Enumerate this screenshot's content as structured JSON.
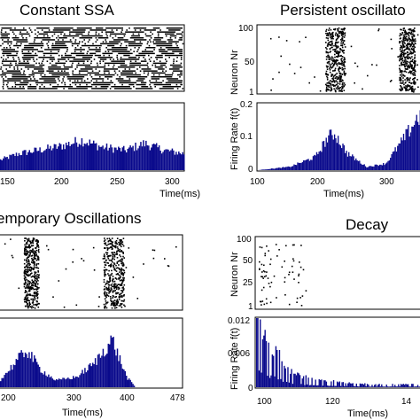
{
  "colors": {
    "histogram": "#0a0a8c",
    "raster": "#000000",
    "axes": "#000000",
    "background": "#ffffff"
  },
  "chart_data": [
    {
      "id": "constant",
      "type": "raster+histogram",
      "title": "Constant SSA",
      "raster": {
        "density": "uniform-dense",
        "ylabel": "",
        "yticks": []
      },
      "histogram": {
        "xlabel": "Time(ms)",
        "ylabel": "",
        "xlim": [
          110,
          300
        ],
        "ylim": [
          0,
          0.2
        ],
        "xticks": [
          "150",
          "200",
          "250",
          "300"
        ],
        "yticks": [],
        "bins": [
          {
            "x": 110,
            "y": 0.03
          },
          {
            "x": 130,
            "y": 0.05
          },
          {
            "x": 150,
            "y": 0.06
          },
          {
            "x": 170,
            "y": 0.07
          },
          {
            "x": 195,
            "y": 0.09
          },
          {
            "x": 215,
            "y": 0.07
          },
          {
            "x": 240,
            "y": 0.06
          },
          {
            "x": 260,
            "y": 0.08
          },
          {
            "x": 280,
            "y": 0.06
          },
          {
            "x": 300,
            "y": 0.05
          }
        ]
      }
    },
    {
      "id": "persistent",
      "type": "raster+histogram",
      "title": "Persistent oscillato",
      "raster": {
        "density": "bursts",
        "bursts": [
          [
            205,
            235
          ],
          [
            320,
            345
          ]
        ],
        "ylabel": "Neuron Nr",
        "yticks": [
          "100",
          "50",
          "1"
        ]
      },
      "histogram": {
        "xlabel": "Time(ms)",
        "ylabel": "Firing Rate f(t)",
        "xlim": [
          100,
          360
        ],
        "ylim": [
          0,
          0.2
        ],
        "xticks": [
          "100",
          "200",
          "300"
        ],
        "yticks": [
          "0.2",
          "0.1",
          "0"
        ],
        "bins": [
          {
            "x": 100,
            "y": 0.0
          },
          {
            "x": 150,
            "y": 0.01
          },
          {
            "x": 190,
            "y": 0.04
          },
          {
            "x": 210,
            "y": 0.1
          },
          {
            "x": 220,
            "y": 0.11
          },
          {
            "x": 240,
            "y": 0.05
          },
          {
            "x": 270,
            "y": 0.01
          },
          {
            "x": 300,
            "y": 0.02
          },
          {
            "x": 330,
            "y": 0.1
          },
          {
            "x": 350,
            "y": 0.16
          }
        ]
      }
    },
    {
      "id": "temporary",
      "type": "raster+histogram",
      "title": "emporary Oscillations",
      "raster": {
        "density": "bursts",
        "bursts": [
          [
            210,
            235
          ],
          [
            345,
            380
          ]
        ],
        "ylabel": "",
        "yticks": []
      },
      "histogram": {
        "xlabel": "Time(ms)",
        "ylabel": "",
        "xlim": [
          170,
          478
        ],
        "ylim": [
          0,
          0.2
        ],
        "xticks": [
          "200",
          "300",
          "400",
          "478"
        ],
        "yticks": [],
        "bins": [
          {
            "x": 170,
            "y": 0.02
          },
          {
            "x": 190,
            "y": 0.06
          },
          {
            "x": 215,
            "y": 0.11
          },
          {
            "x": 240,
            "y": 0.05
          },
          {
            "x": 265,
            "y": 0.02
          },
          {
            "x": 300,
            "y": 0.03
          },
          {
            "x": 330,
            "y": 0.07
          },
          {
            "x": 360,
            "y": 0.14
          },
          {
            "x": 385,
            "y": 0.03
          },
          {
            "x": 400,
            "y": 0.0
          }
        ]
      }
    },
    {
      "id": "decay",
      "type": "raster+histogram",
      "title": "Decay",
      "raster": {
        "density": "sparse-decay",
        "ylabel": "Neuron Nr",
        "yticks": [
          "100",
          "50",
          "25",
          "1"
        ]
      },
      "histogram": {
        "xlabel": "Time(ms)",
        "ylabel": "Firing Rate f(t)",
        "xlim": [
          98,
          145
        ],
        "ylim": [
          0,
          0.012
        ],
        "xticks": [
          "100",
          "120",
          "14"
        ],
        "yticks": [
          "0.012",
          "0.006",
          "0"
        ],
        "bins": [
          {
            "x": 98,
            "y": 0.011
          },
          {
            "x": 100,
            "y": 0.009
          },
          {
            "x": 102,
            "y": 0.007
          },
          {
            "x": 104,
            "y": 0.006
          },
          {
            "x": 107,
            "y": 0.003
          },
          {
            "x": 110,
            "y": 0.002
          },
          {
            "x": 114,
            "y": 0.0015
          },
          {
            "x": 120,
            "y": 0.001
          },
          {
            "x": 130,
            "y": 0.0005
          },
          {
            "x": 140,
            "y": 0.0005
          }
        ]
      }
    }
  ]
}
